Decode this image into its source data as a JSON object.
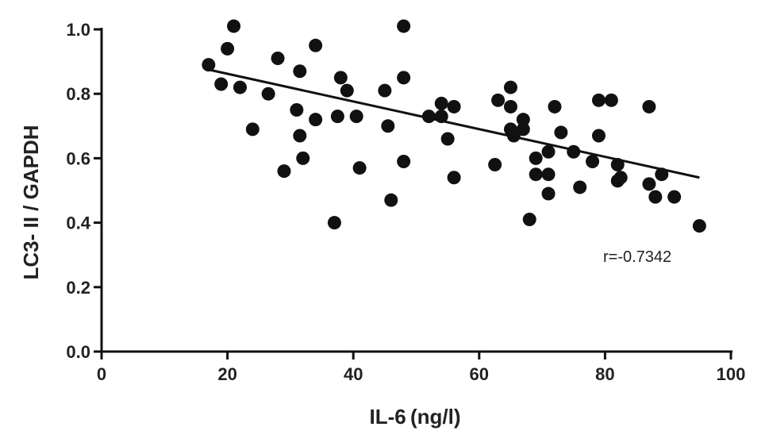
{
  "chart_data": {
    "type": "scatter",
    "title": "",
    "xlabel": "IL-6 (ng/l)",
    "ylabel": "LC3- II / GAPDH",
    "xlim": [
      0,
      100
    ],
    "ylim": [
      0,
      1.0
    ],
    "x_ticks": [
      "0",
      "20",
      "40",
      "60",
      "80",
      "100"
    ],
    "y_ticks": [
      "0.0",
      "0.2",
      "0.4",
      "0.6",
      "0.8",
      "1.0"
    ],
    "grid": false,
    "legend": "none",
    "annotation": "r=-0.7342",
    "trendline": {
      "x": [
        17,
        95
      ],
      "y": [
        0.875,
        0.54
      ]
    },
    "points": [
      {
        "x": 17,
        "y": 0.89
      },
      {
        "x": 19,
        "y": 0.83
      },
      {
        "x": 20,
        "y": 0.94
      },
      {
        "x": 21,
        "y": 1.01
      },
      {
        "x": 22,
        "y": 0.82
      },
      {
        "x": 24,
        "y": 0.69
      },
      {
        "x": 26.5,
        "y": 0.8
      },
      {
        "x": 28,
        "y": 0.91
      },
      {
        "x": 29,
        "y": 0.56
      },
      {
        "x": 31,
        "y": 0.75
      },
      {
        "x": 31.5,
        "y": 0.87
      },
      {
        "x": 31.5,
        "y": 0.67
      },
      {
        "x": 32,
        "y": 0.6
      },
      {
        "x": 34,
        "y": 0.95
      },
      {
        "x": 34,
        "y": 0.72
      },
      {
        "x": 37,
        "y": 0.4
      },
      {
        "x": 37.5,
        "y": 0.73
      },
      {
        "x": 38,
        "y": 0.85
      },
      {
        "x": 39,
        "y": 0.81
      },
      {
        "x": 40.5,
        "y": 0.73
      },
      {
        "x": 41,
        "y": 0.57
      },
      {
        "x": 45,
        "y": 0.81
      },
      {
        "x": 45.5,
        "y": 0.7
      },
      {
        "x": 46,
        "y": 0.47
      },
      {
        "x": 48,
        "y": 1.01
      },
      {
        "x": 48,
        "y": 0.85
      },
      {
        "x": 48,
        "y": 0.59
      },
      {
        "x": 52,
        "y": 0.73
      },
      {
        "x": 54,
        "y": 0.77
      },
      {
        "x": 54,
        "y": 0.73
      },
      {
        "x": 55,
        "y": 0.66
      },
      {
        "x": 56,
        "y": 0.76
      },
      {
        "x": 56,
        "y": 0.54
      },
      {
        "x": 62.5,
        "y": 0.58
      },
      {
        "x": 63,
        "y": 0.78
      },
      {
        "x": 65,
        "y": 0.82
      },
      {
        "x": 65,
        "y": 0.76
      },
      {
        "x": 65,
        "y": 0.69
      },
      {
        "x": 65.5,
        "y": 0.67
      },
      {
        "x": 67,
        "y": 0.72
      },
      {
        "x": 67,
        "y": 0.69
      },
      {
        "x": 68,
        "y": 0.41
      },
      {
        "x": 69,
        "y": 0.6
      },
      {
        "x": 69,
        "y": 0.55
      },
      {
        "x": 71,
        "y": 0.62
      },
      {
        "x": 71,
        "y": 0.55
      },
      {
        "x": 71,
        "y": 0.49
      },
      {
        "x": 72,
        "y": 0.76
      },
      {
        "x": 73,
        "y": 0.68
      },
      {
        "x": 75,
        "y": 0.62
      },
      {
        "x": 76,
        "y": 0.51
      },
      {
        "x": 78,
        "y": 0.59
      },
      {
        "x": 79,
        "y": 0.78
      },
      {
        "x": 79,
        "y": 0.67
      },
      {
        "x": 81,
        "y": 0.78
      },
      {
        "x": 82,
        "y": 0.58
      },
      {
        "x": 82,
        "y": 0.53
      },
      {
        "x": 82.5,
        "y": 0.54
      },
      {
        "x": 87,
        "y": 0.76
      },
      {
        "x": 87,
        "y": 0.52
      },
      {
        "x": 88,
        "y": 0.48
      },
      {
        "x": 89,
        "y": 0.55
      },
      {
        "x": 91,
        "y": 0.48
      },
      {
        "x": 95,
        "y": 0.39
      }
    ],
    "colors": {
      "points": "#111111",
      "line": "#111111",
      "text": "#222222"
    }
  }
}
